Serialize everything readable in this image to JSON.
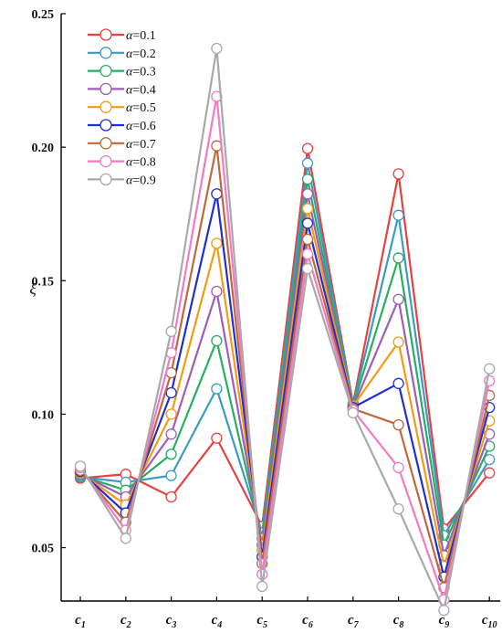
{
  "chart_data": {
    "type": "line",
    "ylabel": "ξ",
    "ylim": [
      0.03,
      0.25
    ],
    "yticks": [
      0.05,
      0.1,
      0.15,
      0.2,
      0.25
    ],
    "ytick_labels": [
      "0.05",
      "0.10",
      "0.15",
      "0.20",
      "0.25"
    ],
    "categories": [
      {
        "base": "c",
        "sub": "1"
      },
      {
        "base": "c",
        "sub": "2"
      },
      {
        "base": "c",
        "sub": "3"
      },
      {
        "base": "c",
        "sub": "4"
      },
      {
        "base": "c",
        "sub": "5"
      },
      {
        "base": "c",
        "sub": "6"
      },
      {
        "base": "c",
        "sub": "7"
      },
      {
        "base": "c",
        "sub": "8"
      },
      {
        "base": "c",
        "sub": "9"
      },
      {
        "base": "c",
        "sub": "10"
      }
    ],
    "grid": false,
    "legend_position": "top-left",
    "legend_symbol": "α",
    "series": [
      {
        "name": "α=0.1",
        "legend_label": "=0.1",
        "color": "#e8413f",
        "values": [
          0.076,
          0.0775,
          0.069,
          0.091,
          0.058,
          0.1995,
          0.104,
          0.19,
          0.057,
          0.078
        ]
      },
      {
        "name": "α=0.2",
        "legend_label": "=0.2",
        "color": "#3a9cc4",
        "values": [
          0.0765,
          0.0745,
          0.077,
          0.1095,
          0.0555,
          0.194,
          0.1035,
          0.1745,
          0.0545,
          0.083
        ]
      },
      {
        "name": "α=0.3",
        "legend_label": "=0.3",
        "color": "#27ae60",
        "values": [
          0.077,
          0.0715,
          0.085,
          0.1275,
          0.0535,
          0.188,
          0.103,
          0.1585,
          0.051,
          0.088
        ]
      },
      {
        "name": "α=0.4",
        "legend_label": "=0.4",
        "color": "#a05cb8",
        "values": [
          0.0775,
          0.069,
          0.0925,
          0.146,
          0.051,
          0.1825,
          0.1025,
          0.143,
          0.047,
          0.0925
        ]
      },
      {
        "name": "α=0.5",
        "legend_label": "=0.5",
        "color": "#f39c12",
        "values": [
          0.078,
          0.066,
          0.1,
          0.164,
          0.049,
          0.177,
          0.103,
          0.127,
          0.043,
          0.0975
        ]
      },
      {
        "name": "α=0.6",
        "legend_label": "=0.6",
        "color": "#1f2fd4",
        "values": [
          0.0785,
          0.063,
          0.108,
          0.1825,
          0.0465,
          0.1715,
          0.1025,
          0.1115,
          0.039,
          0.1025
        ]
      },
      {
        "name": "α=0.7",
        "legend_label": "=0.7",
        "color": "#c0683a",
        "values": [
          0.079,
          0.0595,
          0.1155,
          0.2005,
          0.044,
          0.1655,
          0.102,
          0.096,
          0.035,
          0.107
        ]
      },
      {
        "name": "α=0.8",
        "legend_label": "=0.8",
        "color": "#f27ac7",
        "values": [
          0.08,
          0.0565,
          0.123,
          0.219,
          0.04,
          0.16,
          0.1015,
          0.08,
          0.0305,
          0.1125
        ]
      },
      {
        "name": "α=0.9",
        "legend_label": "=0.9",
        "color": "#a9a9a9",
        "values": [
          0.0805,
          0.0535,
          0.131,
          0.237,
          0.0355,
          0.1545,
          0.1005,
          0.0645,
          0.0265,
          0.117
        ]
      }
    ]
  }
}
